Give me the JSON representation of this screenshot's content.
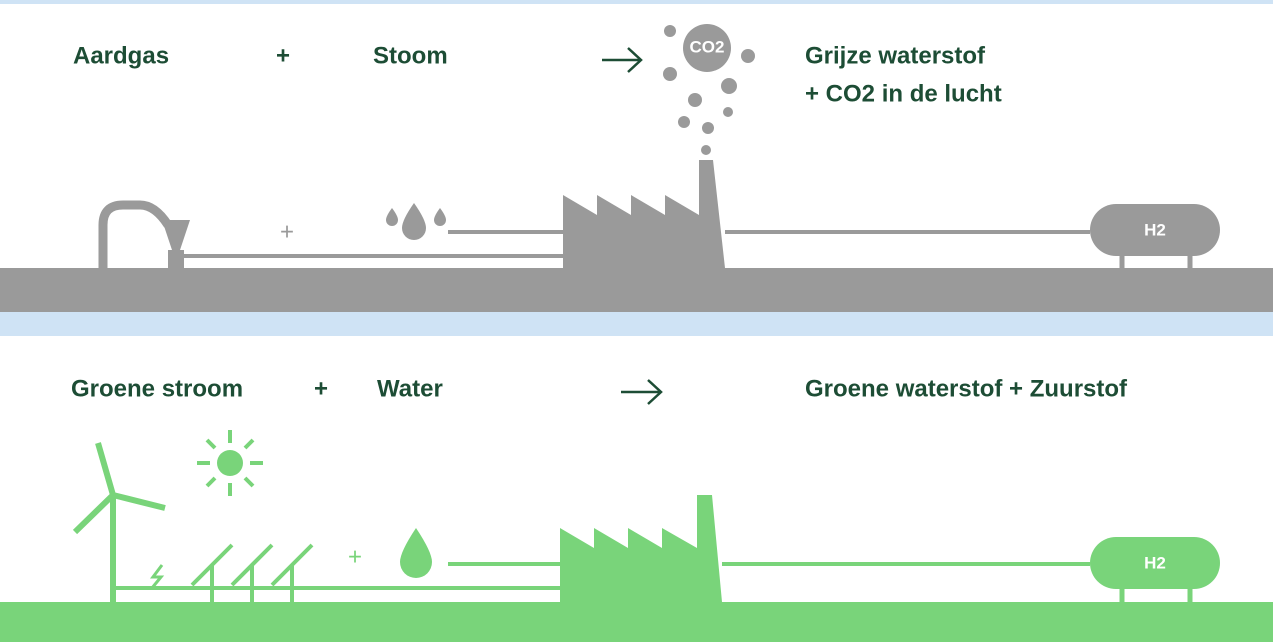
{
  "gray_process": {
    "input_1": "Aardgas",
    "plus": "+",
    "input_2": "Stoom",
    "output_line_1": "Grijze waterstof",
    "output_line_2": "+ CO2 in de lucht",
    "emission_label": "CO2",
    "small_plus": "+",
    "tank_label": "H2"
  },
  "green_process": {
    "input_1": "Groene stroom",
    "plus": "+",
    "input_2": "Water",
    "output": "Groene waterstof  + Zuurstof",
    "small_plus": "+",
    "tank_label": "H2"
  }
}
